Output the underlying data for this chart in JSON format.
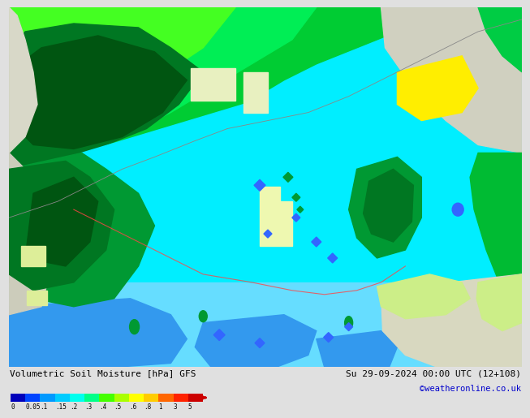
{
  "title_left": "Volumetric Soil Moisture [hPa] GFS",
  "title_right": "Su 29-09-2024 00:00 UTC (12+108)",
  "subtitle_right": "©weatheronline.co.uk",
  "colorbar_labels": [
    "0",
    "0.05",
    ".1",
    ".15",
    ".2",
    ".3",
    ".4",
    ".5",
    ".6",
    ".8",
    "1",
    "3",
    "5"
  ],
  "colorbar_colors": [
    "#0000bb",
    "#0044ff",
    "#0099ff",
    "#00ccff",
    "#00ffee",
    "#00ff88",
    "#44ff00",
    "#aaff00",
    "#ffff00",
    "#ffcc00",
    "#ff6600",
    "#ff2200",
    "#cc0000"
  ],
  "fig_width": 6.34,
  "fig_height": 4.9,
  "map_bg": "#00eeff",
  "bottom_bg": "#e8e8e8",
  "text_color": "#000000",
  "link_color": "#0000cc"
}
